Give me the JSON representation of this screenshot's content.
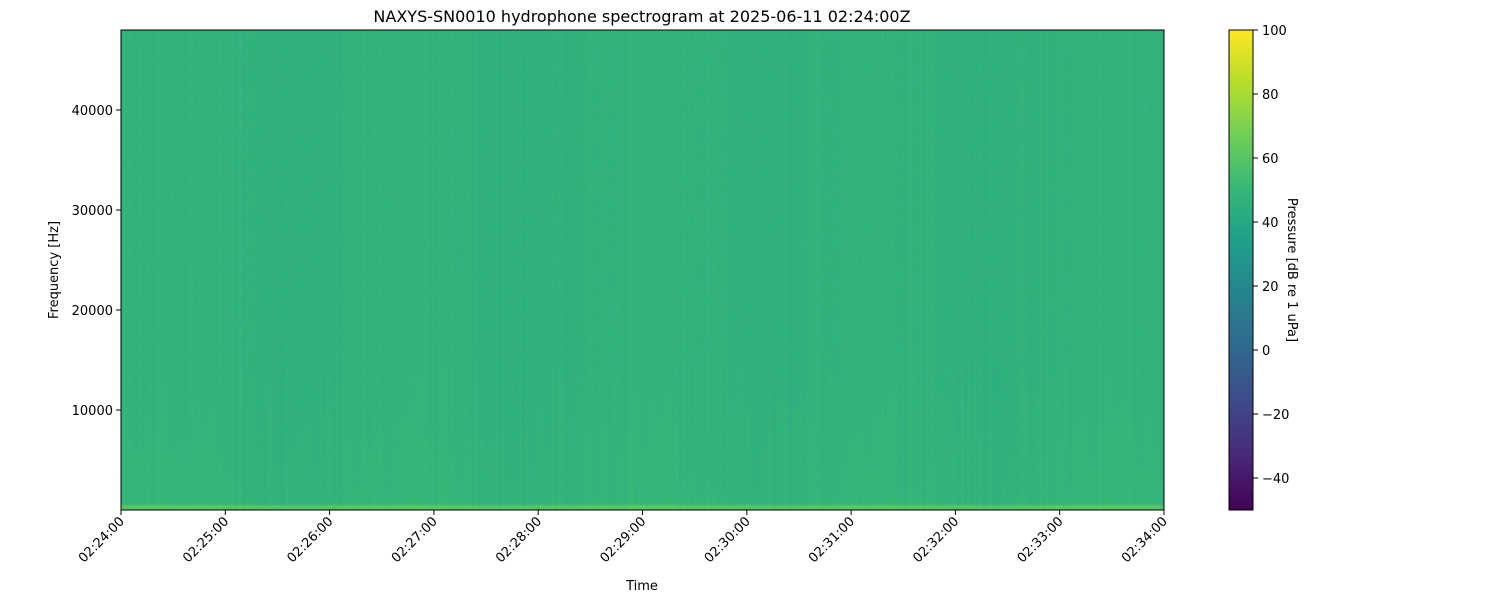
{
  "chart_data": {
    "type": "heatmap",
    "title": "NAXYS-SN0010 hydrophone spectrogram at 2025-06-11 02:24:00Z",
    "xlabel": "Time",
    "ylabel": "Frequency [Hz]",
    "x_ticks": [
      "02:24:00",
      "02:25:00",
      "02:26:00",
      "02:27:00",
      "02:28:00",
      "02:29:00",
      "02:30:00",
      "02:31:00",
      "02:32:00",
      "02:33:00",
      "02:34:00"
    ],
    "xlim": [
      "02:24:00",
      "02:34:00"
    ],
    "y_ticks": [
      10000,
      20000,
      30000,
      40000
    ],
    "ylim": [
      0,
      48000
    ],
    "colormap": "viridis",
    "colorbar": {
      "label": "Pressure [dB re 1 uPa]",
      "range": [
        -50,
        100
      ],
      "ticks": [
        -40,
        -20,
        0,
        20,
        40,
        60,
        80,
        100
      ]
    },
    "typical_level_db": 47,
    "low_frequency_band_level_db": 60,
    "grid": false
  }
}
